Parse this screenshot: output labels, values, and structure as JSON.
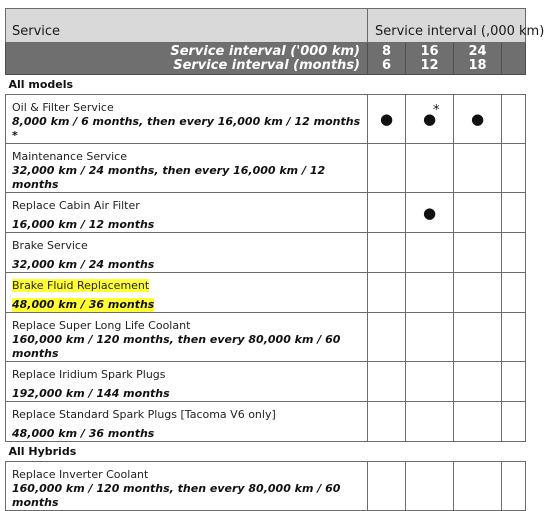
{
  "header": {
    "service": "Service",
    "interval_title": "Service interval (,000 km)",
    "row_km_label": "Service interval ('000 km)",
    "row_months_label": "Service interval (months)",
    "intervals": [
      {
        "km": "8",
        "months": "6"
      },
      {
        "km": "16",
        "months": "12"
      },
      {
        "km": "24",
        "months": "18"
      },
      {
        "km": "",
        "months": ""
      }
    ]
  },
  "groups": [
    {
      "label": "All models",
      "rows": [
        {
          "name": "Oil & Filter Service",
          "interval": "8,000 km / 6 months, then every 16,000 km / 12 months *",
          "marks": [
            "●",
            "●",
            "●",
            ""
          ],
          "star_col": 1,
          "star": "*"
        },
        {
          "name": "Maintenance Service",
          "interval": "32,000 km / 24 months, then every 16,000 km / 12 months",
          "marks": [
            "",
            "",
            "",
            ""
          ]
        },
        {
          "name": "Replace Cabin Air Filter",
          "interval": "16,000 km / 12 months",
          "marks": [
            "",
            "●",
            "",
            ""
          ]
        },
        {
          "name": "Brake Service",
          "interval": "32,000 km / 24 months",
          "marks": [
            "",
            "",
            "",
            ""
          ]
        },
        {
          "name": "Brake Fluid Replacement",
          "interval": "48,000 km / 36 months",
          "marks": [
            "",
            "",
            "",
            ""
          ],
          "highlight": true
        },
        {
          "name": "Replace Super Long Life Coolant",
          "interval": "160,000 km / 120 months, then every 80,000 km / 60 months",
          "marks": [
            "",
            "",
            "",
            ""
          ]
        },
        {
          "name": "Replace Iridium Spark Plugs",
          "interval": "192,000 km / 144 months",
          "marks": [
            "",
            "",
            "",
            ""
          ]
        },
        {
          "name": "Replace Standard Spark Plugs [Tacoma V6 only]",
          "interval": "48,000 km / 36 months",
          "marks": [
            "",
            "",
            "",
            ""
          ]
        }
      ]
    },
    {
      "label": "All Hybrids",
      "rows": [
        {
          "name": "Replace Inverter Coolant",
          "interval": "160,000 km / 120 months, then every 80,000 km / 60 months",
          "marks": [
            "",
            "",
            "",
            ""
          ]
        }
      ]
    }
  ],
  "colors": {
    "highlight": "#ffff33",
    "header_light": "#d9d9d9",
    "header_dark": "#6f6f6f"
  }
}
